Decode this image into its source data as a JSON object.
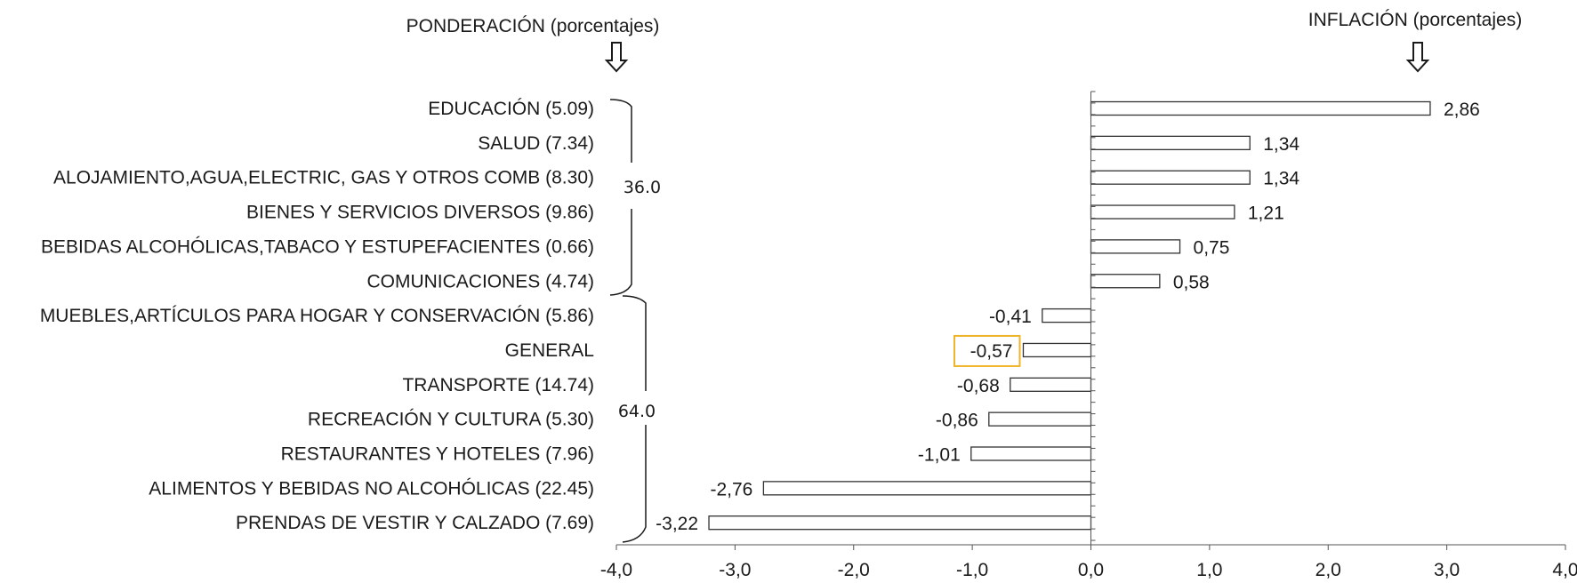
{
  "headers": {
    "left": "PONDERACIÓN (porcentajes)",
    "right": "INFLACIÓN (porcentajes)"
  },
  "groups": [
    {
      "label": "36.0"
    },
    {
      "label": "64.0"
    }
  ],
  "chart_data": {
    "type": "bar",
    "orientation": "horizontal",
    "categories": [
      "EDUCACIÓN (5.09)",
      "SALUD (7.34)",
      "ALOJAMIENTO,AGUA,ELECTRIC, GAS Y OTROS COMB (8.30)",
      "BIENES Y SERVICIOS DIVERSOS (9.86)",
      "BEBIDAS ALCOHÓLICAS,TABACO Y ESTUPEFACIENTES (0.66)",
      "COMUNICACIONES (4.74)",
      "MUEBLES,ARTÍCULOS PARA HOGAR Y CONSERVACIÓN (5.86)",
      "GENERAL",
      "TRANSPORTE (14.74)",
      "RECREACIÓN Y CULTURA (5.30)",
      "RESTAURANTES Y HOTELES (7.96)",
      "ALIMENTOS Y BEBIDAS NO ALCOHÓLICAS (22.45)",
      "PRENDAS DE VESTIR Y CALZADO (7.69)"
    ],
    "values": [
      2.86,
      1.34,
      1.34,
      1.21,
      0.75,
      0.58,
      -0.41,
      -0.57,
      -0.68,
      -0.86,
      -1.01,
      -2.76,
      -3.22
    ],
    "value_labels": [
      "2,86",
      "1,34",
      "1,34",
      "1,21",
      "0,75",
      "0,58",
      "-0,41",
      "-0,57",
      "-0,68",
      "-0,86",
      "-1,01",
      "-2,76",
      "-3,22"
    ],
    "highlighted": "GENERAL",
    "xlim": [
      -4.0,
      4.0
    ],
    "xticks": [
      -4.0,
      -3.0,
      -2.0,
      -1.0,
      0.0,
      1.0,
      2.0,
      3.0,
      4.0
    ],
    "xtick_labels": [
      "-4,0",
      "-3,0",
      "-2,0",
      "-1,0",
      "0,0",
      "1,0",
      "2,0",
      "3,0",
      "4,0"
    ],
    "grid": false,
    "colors": {
      "bar_fill": "#ffffff",
      "bar_stroke": "#333333",
      "highlight": "#f0b428"
    }
  }
}
